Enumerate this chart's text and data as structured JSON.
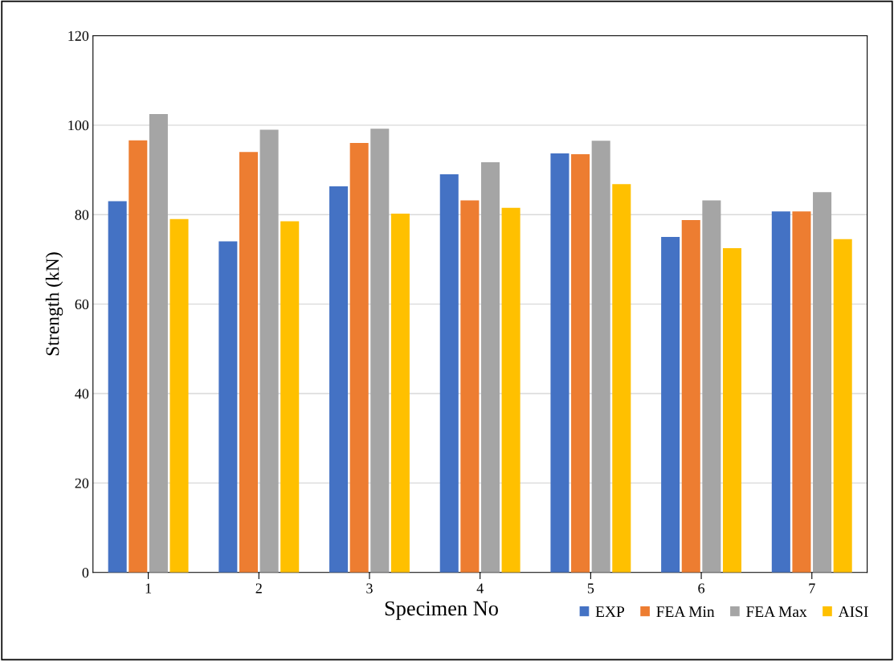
{
  "chart_data": {
    "type": "bar",
    "xlabel": "Specimen No",
    "ylabel": "Strength (kN)",
    "categories": [
      "1",
      "2",
      "3",
      "4",
      "5",
      "6",
      "7"
    ],
    "series": [
      {
        "name": "EXP",
        "color": "#4472c4",
        "values": [
          83,
          74,
          86.3,
          89,
          93.7,
          75,
          80.7
        ]
      },
      {
        "name": "FEA Min",
        "color": "#ed7d31",
        "values": [
          96.6,
          94,
          96,
          83.2,
          93.5,
          78.8,
          80.7
        ]
      },
      {
        "name": "FEA Max",
        "color": "#a5a5a5",
        "values": [
          102.5,
          99,
          99.2,
          91.7,
          96.5,
          83.2,
          85
        ]
      },
      {
        "name": "AISI",
        "color": "#ffc000",
        "values": [
          79,
          78.5,
          80.2,
          81.5,
          86.8,
          72.5,
          74.5
        ]
      }
    ],
    "ylim": [
      0,
      120
    ],
    "yticks": [
      0,
      20,
      40,
      60,
      80,
      100,
      120
    ],
    "grid": "y",
    "legend": "bottom right"
  }
}
